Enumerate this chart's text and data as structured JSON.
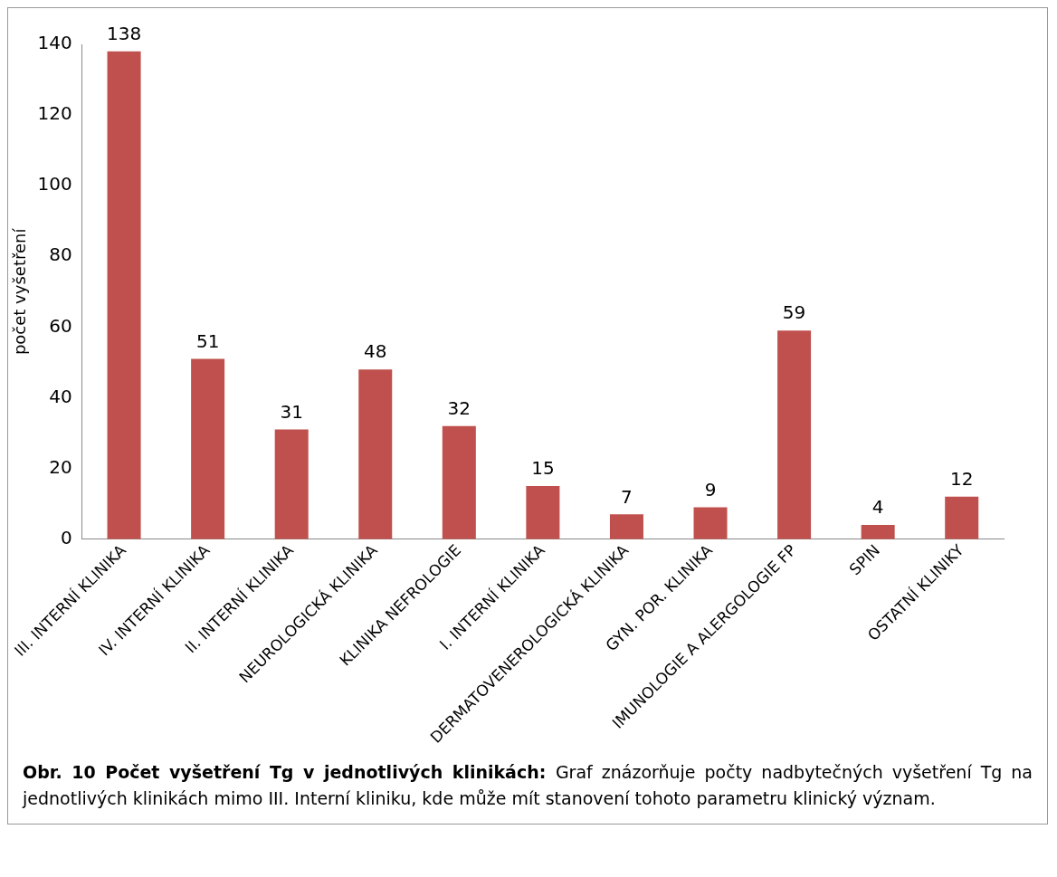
{
  "chart_data": {
    "type": "bar",
    "ylabel": "počet vyšetření",
    "categories": [
      "III. INTERNÍ KLINIKA",
      "IV. INTERNÍ KLINIKA",
      "II. INTERNÍ KLINIKA",
      "NEUROLOGICKÁ KLINIKA",
      "KLINIKA NEFROLOGIE",
      "I. INTERNÍ KLINIKA",
      "DERMATOVENEROLOGICKÁ KLINIKA",
      "GYN. POR. KLINIKA",
      "IMUNOLOGIE A ALERGOLOGIE FP",
      "SPIN",
      "OSTATNÍ KLINIKY"
    ],
    "values": [
      138,
      51,
      31,
      48,
      32,
      15,
      7,
      9,
      59,
      4,
      12
    ],
    "color": "#c0504d",
    "ylim": [
      0,
      140
    ],
    "yticks": [
      0,
      20,
      40,
      60,
      80,
      100,
      120,
      140
    ],
    "grid": false,
    "data_labels": true,
    "annotations": [
      "Obr. 10 Počet vyšetření Tg v jednotlivých klinikách:",
      "Graf znázorňuje počty nadbytečných vyšetření Tg na jednotlivých klinikách mimo III. Interní kliniku, kde může mít stanovení tohoto parametru klinický význam."
    ]
  }
}
